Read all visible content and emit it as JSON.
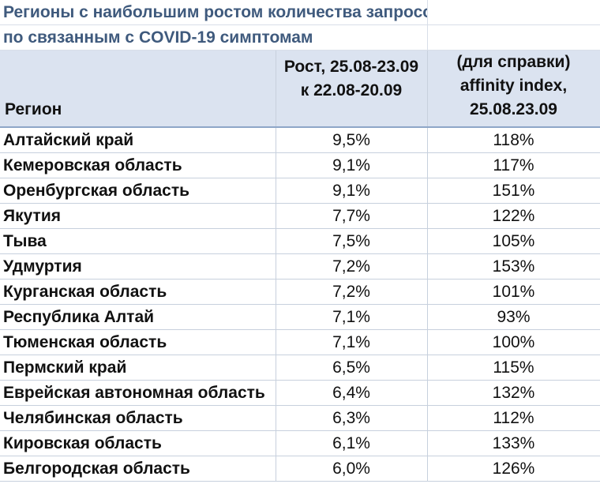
{
  "chart_data": {
    "type": "table",
    "title_lines": [
      "Регионы с наибольшим ростом количества запросов",
      "по связанным с COVID-19 симптомам"
    ],
    "columns": {
      "region": "Регион",
      "growth": [
        "Рост, 25.08-23.09",
        "к 22.08-20.09"
      ],
      "affinity": [
        "(для справки)",
        "affinity index,",
        "25.08.23.09"
      ]
    },
    "rows": [
      {
        "region": "Алтайский край",
        "growth": "9,5%",
        "affinity": "118%"
      },
      {
        "region": "Кемеровская область",
        "growth": "9,1%",
        "affinity": "117%"
      },
      {
        "region": "Оренбургская область",
        "growth": "9,1%",
        "affinity": "151%"
      },
      {
        "region": "Якутия",
        "growth": "7,7%",
        "affinity": "122%"
      },
      {
        "region": "Тыва",
        "growth": "7,5%",
        "affinity": "105%"
      },
      {
        "region": "Удмуртия",
        "growth": "7,2%",
        "affinity": "153%"
      },
      {
        "region": "Курганская область",
        "growth": "7,2%",
        "affinity": "101%"
      },
      {
        "region": "Республика Алтай",
        "growth": "7,1%",
        "affinity": "93%"
      },
      {
        "region": "Тюменская область",
        "growth": "7,1%",
        "affinity": "100%"
      },
      {
        "region": "Пермский край",
        "growth": "6,5%",
        "affinity": "115%"
      },
      {
        "region": "Еврейская автономная область",
        "growth": "6,4%",
        "affinity": "132%"
      },
      {
        "region": "Челябинская область",
        "growth": "6,3%",
        "affinity": "112%"
      },
      {
        "region": "Кировская область",
        "growth": "6,1%",
        "affinity": "133%"
      },
      {
        "region": "Белгородская область",
        "growth": "6,0%",
        "affinity": "126%"
      }
    ],
    "colors": {
      "title_text": "#3f5a7d",
      "header_fill": "#dbe3f0",
      "grid_line": "#c7d0dd"
    }
  }
}
